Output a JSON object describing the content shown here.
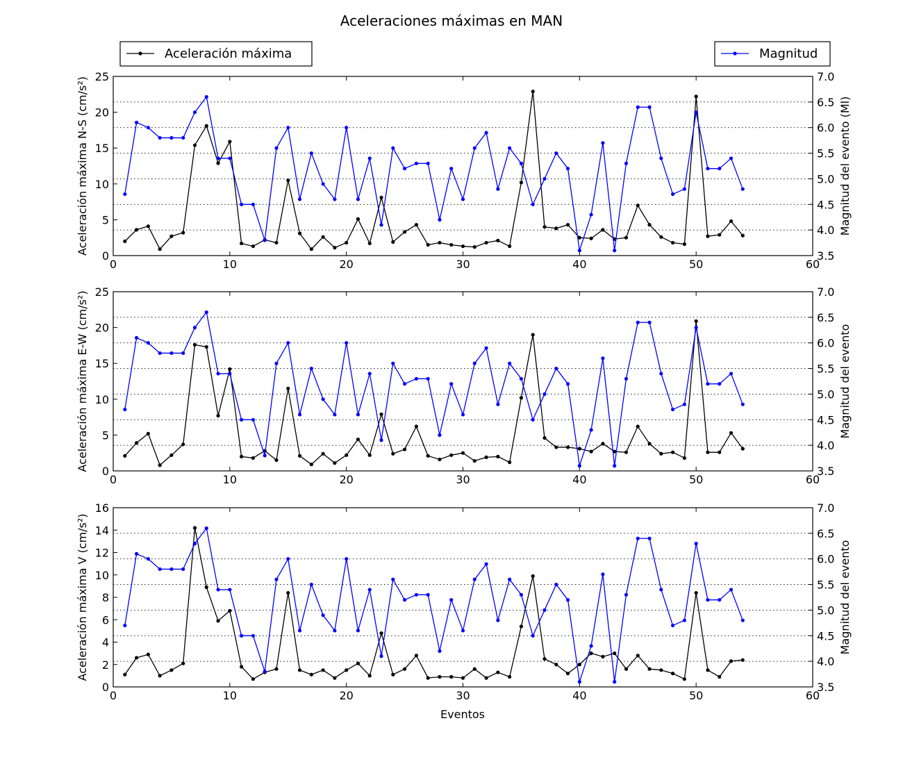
{
  "title": "Aceleraciones máximas en MAN",
  "legend": {
    "left_label": "Aceleración máxima",
    "right_label": "Magnitud",
    "left_placement": "top-left",
    "right_placement": "top-right"
  },
  "colors": {
    "acceleration": "#000000",
    "magnitude": "#0000ff",
    "grid": "#000000"
  },
  "xlabel": "Eventos",
  "chart_data": [
    {
      "type": "line",
      "xlim": [
        0,
        60
      ],
      "xticks": [
        0,
        10,
        20,
        30,
        40,
        50,
        60
      ],
      "x": [
        1,
        2,
        3,
        4,
        5,
        6,
        7,
        8,
        9,
        10,
        11,
        12,
        13,
        14,
        15,
        16,
        17,
        18,
        19,
        20,
        21,
        22,
        23,
        24,
        25,
        26,
        27,
        28,
        29,
        30,
        31,
        32,
        33,
        34,
        35,
        36,
        37,
        38,
        39,
        40,
        41,
        42,
        43,
        44,
        45,
        46,
        47,
        48,
        49,
        50,
        51,
        52,
        53,
        54
      ],
      "ylabel_left": "Aceleración máxima N-S (cm/s²)",
      "ylim_left": [
        0,
        25
      ],
      "yticks_left": [
        0,
        5,
        10,
        15,
        20,
        25
      ],
      "ylabel_right": "Magnitud del evento (Ml)",
      "ylim_right": [
        3.5,
        7.0
      ],
      "yticks_right": [
        "3.5",
        "4.0",
        "4.5",
        "5.0",
        "5.5",
        "6.0",
        "6.5",
        "7.0"
      ],
      "grid": true,
      "series": [
        {
          "name": "Aceleración máxima",
          "axis": "left",
          "color": "#000000",
          "values": [
            2.0,
            3.6,
            4.1,
            0.9,
            2.7,
            3.2,
            15.4,
            18.1,
            12.9,
            15.9,
            1.7,
            1.3,
            2.2,
            1.8,
            10.5,
            3.1,
            0.9,
            2.6,
            1.1,
            1.8,
            5.1,
            1.7,
            8.1,
            1.9,
            3.3,
            4.3,
            1.5,
            1.8,
            1.5,
            1.3,
            1.2,
            1.8,
            2.1,
            1.3,
            10.2,
            22.9,
            4.0,
            3.8,
            4.3,
            2.5,
            2.4,
            3.6,
            2.3,
            2.5,
            7.0,
            4.3,
            2.6,
            1.8,
            1.6,
            22.2,
            2.7,
            2.9,
            4.8,
            2.8
          ]
        },
        {
          "name": "Magnitud",
          "axis": "right",
          "color": "#0000ff",
          "values": [
            4.7,
            6.1,
            6.0,
            5.8,
            5.8,
            5.8,
            6.3,
            6.6,
            5.4,
            5.4,
            4.5,
            4.5,
            3.8,
            5.6,
            6.0,
            4.6,
            5.5,
            4.9,
            4.6,
            6.0,
            4.6,
            5.4,
            4.1,
            5.6,
            5.2,
            5.3,
            5.3,
            4.2,
            5.2,
            4.6,
            5.6,
            5.9,
            4.8,
            5.6,
            5.3,
            4.5,
            5.0,
            5.5,
            5.2,
            3.6,
            4.3,
            5.7,
            3.6,
            5.3,
            6.4,
            6.4,
            5.4,
            4.7,
            4.8,
            6.3,
            5.2,
            5.2,
            5.4,
            4.8
          ]
        }
      ]
    },
    {
      "type": "line",
      "xlim": [
        0,
        60
      ],
      "xticks": [
        0,
        10,
        20,
        30,
        40,
        50,
        60
      ],
      "x": [
        1,
        2,
        3,
        4,
        5,
        6,
        7,
        8,
        9,
        10,
        11,
        12,
        13,
        14,
        15,
        16,
        17,
        18,
        19,
        20,
        21,
        22,
        23,
        24,
        25,
        26,
        27,
        28,
        29,
        30,
        31,
        32,
        33,
        34,
        35,
        36,
        37,
        38,
        39,
        40,
        41,
        42,
        43,
        44,
        45,
        46,
        47,
        48,
        49,
        50,
        51,
        52,
        53,
        54
      ],
      "ylabel_left": "Aceleración máxima E-W (cm/s²)",
      "ylim_left": [
        0,
        25
      ],
      "yticks_left": [
        0,
        5,
        10,
        15,
        20,
        25
      ],
      "ylabel_right": "Magnitud del evento",
      "ylim_right": [
        3.5,
        7.0
      ],
      "yticks_right": [
        "3.5",
        "4.0",
        "4.5",
        "5.0",
        "5.5",
        "6.0",
        "6.5",
        "7.0"
      ],
      "grid": true,
      "series": [
        {
          "name": "Aceleración máxima",
          "axis": "left",
          "color": "#000000",
          "values": [
            2.1,
            3.9,
            5.2,
            0.8,
            2.2,
            3.7,
            17.6,
            17.3,
            7.7,
            14.2,
            2.0,
            1.8,
            2.8,
            1.5,
            11.5,
            2.1,
            0.9,
            2.4,
            1.1,
            2.2,
            4.4,
            2.2,
            7.9,
            2.4,
            3.0,
            6.2,
            2.1,
            1.6,
            2.2,
            2.5,
            1.4,
            1.9,
            2.0,
            1.2,
            10.2,
            19.0,
            4.6,
            3.3,
            3.3,
            3.1,
            2.7,
            3.8,
            2.7,
            2.6,
            6.2,
            3.8,
            2.4,
            2.6,
            1.8,
            20.9,
            2.6,
            2.6,
            5.3,
            3.1
          ]
        },
        {
          "name": "Magnitud",
          "axis": "right",
          "color": "#0000ff",
          "values": [
            4.7,
            6.1,
            6.0,
            5.8,
            5.8,
            5.8,
            6.3,
            6.6,
            5.4,
            5.4,
            4.5,
            4.5,
            3.8,
            5.6,
            6.0,
            4.6,
            5.5,
            4.9,
            4.6,
            6.0,
            4.6,
            5.4,
            4.1,
            5.6,
            5.2,
            5.3,
            5.3,
            4.2,
            5.2,
            4.6,
            5.6,
            5.9,
            4.8,
            5.6,
            5.3,
            4.5,
            5.0,
            5.5,
            5.2,
            3.6,
            4.3,
            5.7,
            3.6,
            5.3,
            6.4,
            6.4,
            5.4,
            4.7,
            4.8,
            6.3,
            5.2,
            5.2,
            5.4,
            4.8
          ]
        }
      ]
    },
    {
      "type": "line",
      "xlim": [
        0,
        60
      ],
      "xticks": [
        0,
        10,
        20,
        30,
        40,
        50,
        60
      ],
      "x": [
        1,
        2,
        3,
        4,
        5,
        6,
        7,
        8,
        9,
        10,
        11,
        12,
        13,
        14,
        15,
        16,
        17,
        18,
        19,
        20,
        21,
        22,
        23,
        24,
        25,
        26,
        27,
        28,
        29,
        30,
        31,
        32,
        33,
        34,
        35,
        36,
        37,
        38,
        39,
        40,
        41,
        42,
        43,
        44,
        45,
        46,
        47,
        48,
        49,
        50,
        51,
        52,
        53,
        54
      ],
      "ylabel_left": "Aceleración máxima V (cm/s²)",
      "ylim_left": [
        0,
        16
      ],
      "yticks_left": [
        0,
        2,
        4,
        6,
        8,
        10,
        12,
        14,
        16
      ],
      "ylabel_right": "Magnitud del evento",
      "ylim_right": [
        3.5,
        7.0
      ],
      "yticks_right": [
        "3.5",
        "4.0",
        "4.5",
        "5.0",
        "5.5",
        "6.0",
        "6.5",
        "7.0"
      ],
      "grid": true,
      "series": [
        {
          "name": "Aceleración máxima",
          "axis": "left",
          "color": "#000000",
          "values": [
            1.1,
            2.6,
            2.9,
            1.0,
            1.5,
            2.1,
            14.2,
            8.9,
            5.9,
            6.8,
            1.8,
            0.7,
            1.3,
            1.6,
            8.4,
            1.5,
            1.1,
            1.5,
            0.8,
            1.5,
            2.1,
            1.0,
            4.8,
            1.1,
            1.6,
            2.8,
            0.8,
            0.9,
            0.9,
            0.8,
            1.6,
            0.8,
            1.3,
            0.9,
            5.4,
            9.9,
            2.5,
            2.0,
            1.2,
            2.0,
            3.0,
            2.7,
            3.0,
            1.6,
            2.8,
            1.6,
            1.5,
            1.2,
            0.7,
            8.4,
            1.5,
            0.9,
            2.3,
            2.4
          ]
        },
        {
          "name": "Magnitud",
          "axis": "right",
          "color": "#0000ff",
          "values": [
            4.7,
            6.1,
            6.0,
            5.8,
            5.8,
            5.8,
            6.3,
            6.6,
            5.4,
            5.4,
            4.5,
            4.5,
            3.8,
            5.6,
            6.0,
            4.6,
            5.5,
            4.9,
            4.6,
            6.0,
            4.6,
            5.4,
            4.1,
            5.6,
            5.2,
            5.3,
            5.3,
            4.2,
            5.2,
            4.6,
            5.6,
            5.9,
            4.8,
            5.6,
            5.3,
            4.5,
            5.0,
            5.5,
            5.2,
            3.6,
            4.3,
            5.7,
            3.6,
            5.3,
            6.4,
            6.4,
            5.4,
            4.7,
            4.8,
            6.3,
            5.2,
            5.2,
            5.4,
            4.8
          ]
        }
      ]
    }
  ]
}
